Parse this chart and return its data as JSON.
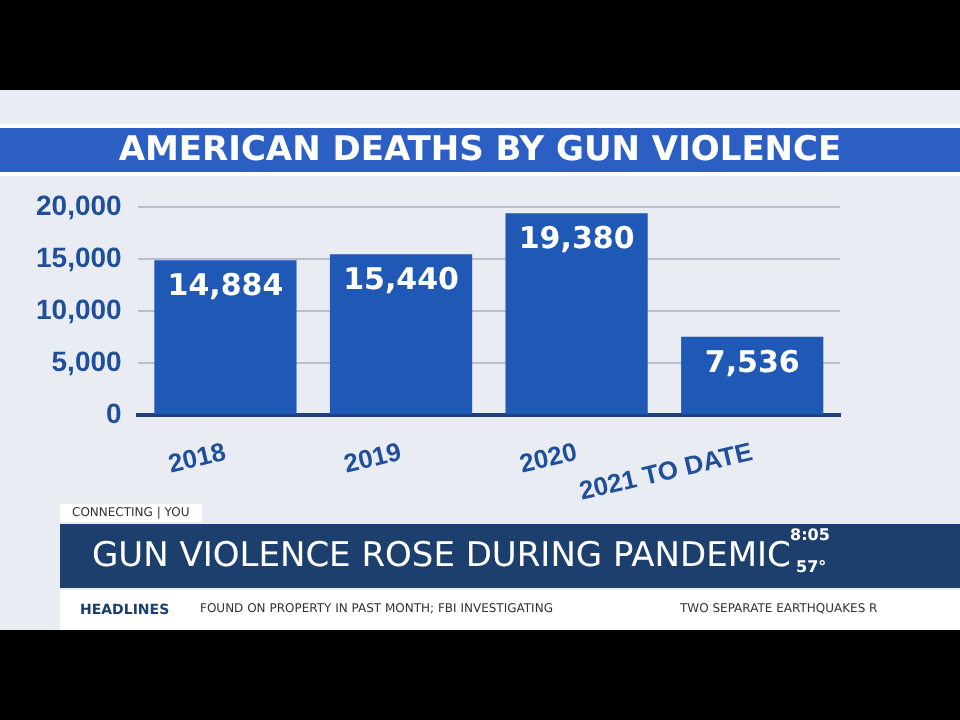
{
  "chart_data": {
    "type": "bar",
    "title": "AMERICAN DEATHS BY GUN VIOLENCE",
    "categories": [
      "2018",
      "2019",
      "2020",
      "2021 TO DATE"
    ],
    "values": [
      14884,
      15440,
      19380,
      7536
    ],
    "color": "#1f58b5",
    "ylim": [
      0,
      20000
    ],
    "yticks": [
      {
        "value": 0,
        "label": "0"
      },
      {
        "value": 5000,
        "label": "5,000"
      },
      {
        "value": 10000,
        "label": "10,000"
      },
      {
        "value": 15000,
        "label": "15,000"
      },
      {
        "value": 20000,
        "label": "20,000"
      }
    ],
    "grid": "y",
    "legend": false,
    "value_labels": [
      "14,884",
      "15,440",
      "19,380",
      "7,536"
    ],
    "annotations": [
      "CONNECTING | YOU",
      "GUN VIOLENCE ROSE DURING PANDEMIC",
      "8:05",
      "57°",
      "HEADLINES",
      "FOUND ON PROPERTY IN PAST MONTH; FBI INVESTIGATING",
      "TWO SEPARATE EARTHQUAKES R"
    ]
  }
}
